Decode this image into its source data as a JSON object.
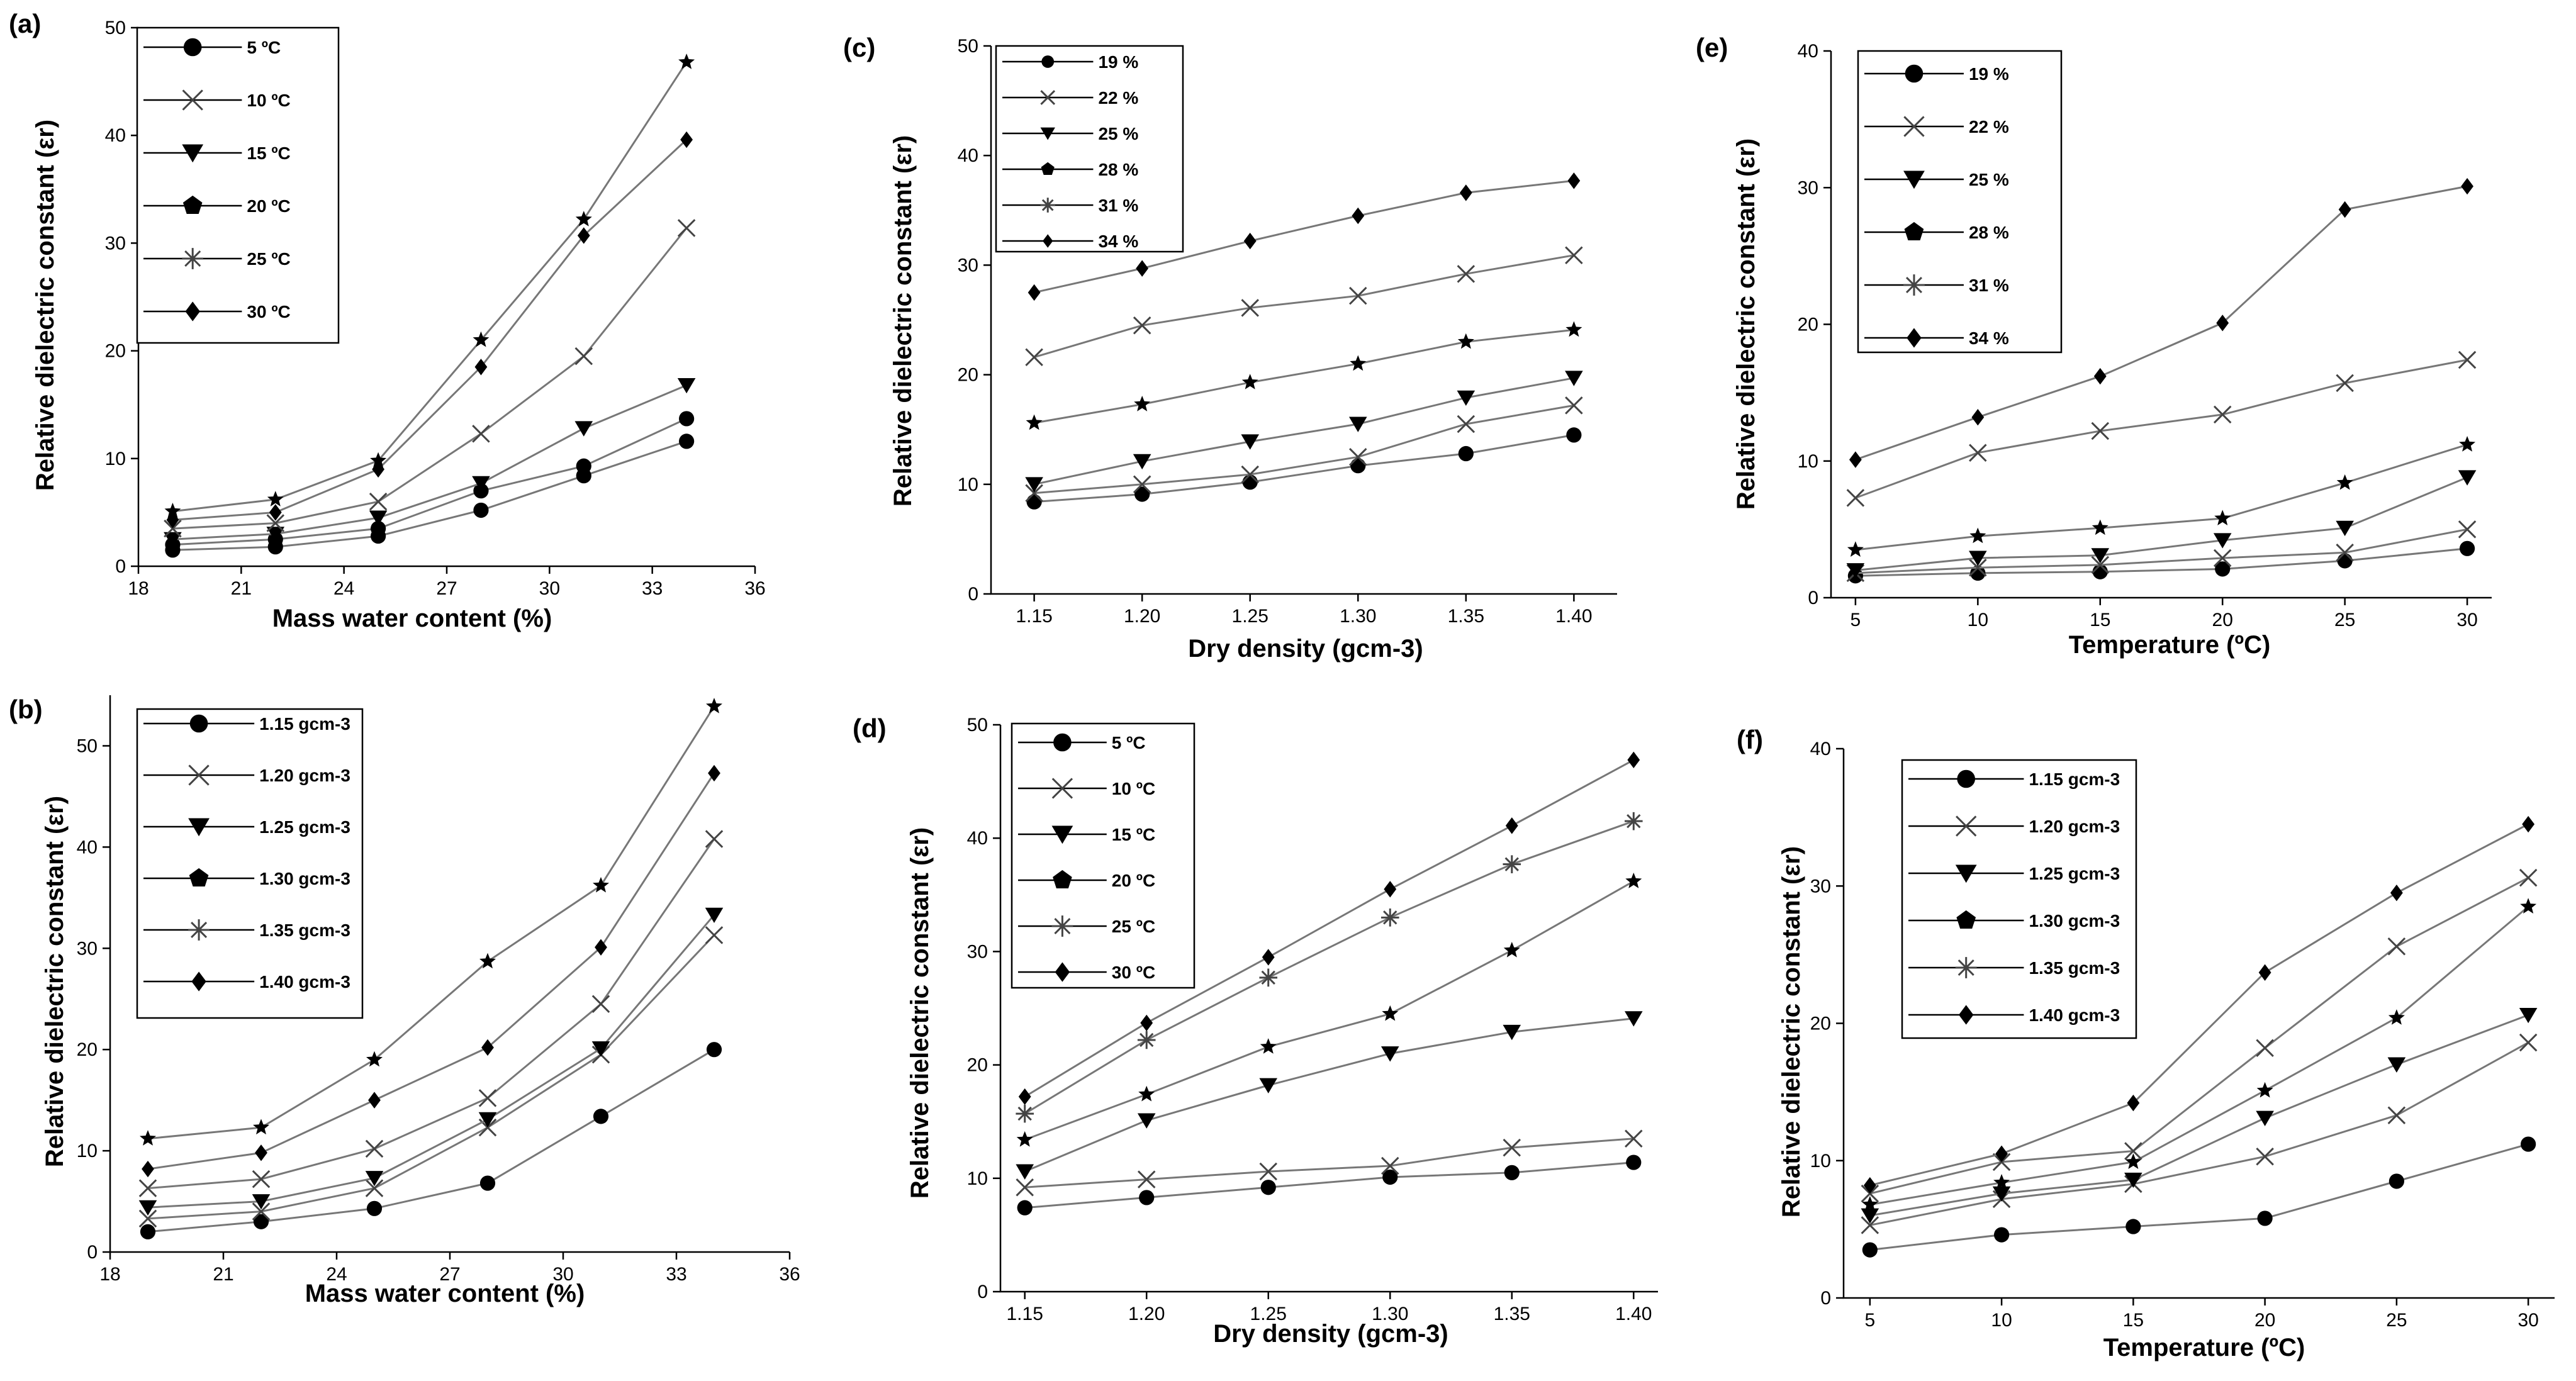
{
  "chart_data": [
    {
      "panel": "(a)",
      "type": "line",
      "xlabel": "Mass water content (%)",
      "ylabel": "Relative dielectric constant (εr)",
      "x": [
        19,
        22,
        25,
        28,
        31,
        34
      ],
      "xticks": [
        18,
        21,
        24,
        27,
        30,
        33,
        36
      ],
      "xlim": [
        18,
        36
      ],
      "yticks": [
        0,
        10,
        20,
        30,
        40,
        50
      ],
      "ylim": [
        0,
        50
      ],
      "series": [
        {
          "name": "5 ºC",
          "marker": "circle",
          "values": [
            1.5,
            1.8,
            2.8,
            5.2,
            8.4,
            11.6
          ]
        },
        {
          "name": "10 ºC",
          "marker": "x",
          "values": [
            2.0,
            2.5,
            3.5,
            7.0,
            9.3,
            13.7
          ]
        },
        {
          "name": "15 ºC",
          "marker": "triangle-down",
          "values": [
            2.5,
            3.0,
            4.5,
            7.7,
            12.8,
            16.8
          ]
        },
        {
          "name": "20 ºC",
          "marker": "pentagon",
          "values": [
            3.5,
            4.0,
            6.0,
            12.3,
            19.5,
            31.4
          ]
        },
        {
          "name": "25 ºC",
          "marker": "asterisk",
          "values": [
            4.3,
            5.0,
            9.0,
            18.5,
            30.7,
            39.6
          ]
        },
        {
          "name": "30 ºC",
          "marker": "diamond",
          "values": [
            5.1,
            6.2,
            9.8,
            21.0,
            32.2,
            46.8
          ]
        }
      ],
      "plotted_markers": [
        "circle",
        "circle",
        "triangle-down",
        "x",
        "diamond",
        "star"
      ]
    },
    {
      "panel": "(b)",
      "type": "line",
      "xlabel": "Mass water content (%)",
      "ylabel": "Relative dielectric constant (εr)",
      "x": [
        19,
        22,
        25,
        28,
        31,
        34
      ],
      "xticks": [
        18,
        21,
        24,
        27,
        30,
        33,
        36
      ],
      "xlim": [
        18,
        36
      ],
      "yticks": [
        0,
        10,
        20,
        30,
        40,
        50
      ],
      "ylim": [
        0,
        55
      ],
      "series": [
        {
          "name": "1.15 gcm-3",
          "marker": "circle",
          "values": [
            2.0,
            3.0,
            4.3,
            6.8,
            13.4,
            20.0
          ]
        },
        {
          "name": "1.20 gcm-3",
          "marker": "x",
          "values": [
            3.3,
            4.0,
            6.3,
            12.3,
            19.5,
            31.3
          ]
        },
        {
          "name": "1.25 gcm-3",
          "marker": "triangle-down",
          "values": [
            4.4,
            5.0,
            7.3,
            13.1,
            20.1,
            33.3
          ]
        },
        {
          "name": "1.30 gcm-3",
          "marker": "pentagon",
          "values": [
            6.3,
            7.2,
            10.2,
            15.2,
            24.5,
            40.8
          ]
        },
        {
          "name": "1.35 gcm-3",
          "marker": "asterisk",
          "values": [
            8.2,
            9.8,
            15.0,
            20.2,
            30.1,
            47.3
          ]
        },
        {
          "name": "1.40 gcm-3",
          "marker": "diamond",
          "values": [
            11.2,
            12.3,
            19.0,
            28.7,
            36.2,
            53.9
          ]
        }
      ],
      "plotted_markers": [
        "circle",
        "x",
        "triangle-down",
        "x",
        "diamond",
        "star"
      ]
    },
    {
      "panel": "(c)",
      "type": "line",
      "xlabel": "Dry density (gcm-3)",
      "ylabel": "Relative dielectric constant (εr)",
      "x": [
        1.15,
        1.2,
        1.25,
        1.3,
        1.35,
        1.4
      ],
      "xticks": [
        1.15,
        1.2,
        1.25,
        1.3,
        1.35,
        1.4
      ],
      "xtick_labels": [
        "1.15",
        "1.20",
        "1.25",
        "1.30",
        "1.35",
        "1.40"
      ],
      "xlim": [
        1.13,
        1.42
      ],
      "yticks": [
        0,
        10,
        20,
        30,
        40,
        50
      ],
      "ylim": [
        0,
        50
      ],
      "series": [
        {
          "name": "19 %",
          "marker": "circle",
          "values": [
            8.4,
            9.1,
            10.2,
            11.7,
            12.8,
            14.5
          ]
        },
        {
          "name": "22 %",
          "marker": "x",
          "values": [
            9.2,
            10.0,
            10.9,
            12.5,
            15.5,
            17.2
          ]
        },
        {
          "name": "25 %",
          "marker": "triangle-down",
          "values": [
            10.0,
            12.1,
            13.9,
            15.5,
            17.9,
            19.7
          ]
        },
        {
          "name": "28 %",
          "marker": "pentagon",
          "values": [
            15.6,
            17.3,
            19.3,
            21.0,
            23.0,
            24.1
          ]
        },
        {
          "name": "31 %",
          "marker": "asterisk",
          "values": [
            21.6,
            24.5,
            26.1,
            27.2,
            29.2,
            30.9
          ]
        },
        {
          "name": "34 %",
          "marker": "diamond",
          "values": [
            27.5,
            29.7,
            32.2,
            34.5,
            36.6,
            37.7
          ]
        }
      ],
      "plotted_markers": [
        "circle",
        "x",
        "triangle-down",
        "star",
        "x",
        "diamond"
      ]
    },
    {
      "panel": "(d)",
      "type": "line",
      "xlabel": "Dry density (gcm-3)",
      "ylabel": "Relative dielectric constant (εr)",
      "x": [
        1.15,
        1.2,
        1.25,
        1.3,
        1.35,
        1.4
      ],
      "xticks": [
        1.15,
        1.2,
        1.25,
        1.3,
        1.35,
        1.4
      ],
      "xtick_labels": [
        "1.15",
        "1.20",
        "1.25",
        "1.30",
        "1.35",
        "1.40"
      ],
      "xlim": [
        1.14,
        1.41
      ],
      "yticks": [
        0,
        10,
        20,
        30,
        40,
        50
      ],
      "ylim": [
        0,
        50
      ],
      "series": [
        {
          "name": "5 ºC",
          "marker": "circle",
          "values": [
            7.4,
            8.3,
            9.2,
            10.1,
            10.5,
            11.4
          ]
        },
        {
          "name": "10 ºC",
          "marker": "x",
          "values": [
            9.2,
            9.9,
            10.6,
            11.1,
            12.7,
            13.5
          ]
        },
        {
          "name": "15 ºC",
          "marker": "triangle-down",
          "values": [
            10.6,
            15.1,
            18.2,
            21.0,
            22.9,
            24.1
          ]
        },
        {
          "name": "20 ºC",
          "marker": "pentagon",
          "values": [
            13.4,
            17.4,
            21.6,
            24.5,
            30.1,
            36.2
          ]
        },
        {
          "name": "25 ºC",
          "marker": "asterisk",
          "values": [
            15.7,
            22.2,
            27.7,
            33.0,
            37.7,
            41.5
          ]
        },
        {
          "name": "30 ºC",
          "marker": "diamond",
          "values": [
            17.2,
            23.7,
            29.5,
            35.5,
            41.1,
            46.9
          ]
        }
      ],
      "plotted_markers": [
        "circle",
        "x",
        "triangle-down",
        "star",
        "asterisk",
        "diamond"
      ]
    },
    {
      "panel": "(e)",
      "type": "line",
      "xlabel": "Temperature (ºC)",
      "ylabel": "Relative dielectric constant (εr)",
      "x": [
        5,
        10,
        15,
        20,
        25,
        30
      ],
      "xticks": [
        5,
        10,
        15,
        20,
        25,
        30
      ],
      "xlim": [
        4,
        31
      ],
      "yticks": [
        0,
        10,
        20,
        30,
        40
      ],
      "ylim": [
        0,
        40
      ],
      "series": [
        {
          "name": "19 %",
          "marker": "circle",
          "values": [
            1.6,
            1.8,
            1.9,
            2.1,
            2.7,
            3.6
          ]
        },
        {
          "name": "22 %",
          "marker": "x",
          "values": [
            1.8,
            2.2,
            2.4,
            2.9,
            3.3,
            5.0
          ]
        },
        {
          "name": "25 %",
          "marker": "triangle-down",
          "values": [
            2.0,
            2.9,
            3.1,
            4.2,
            5.1,
            8.8
          ]
        },
        {
          "name": "28 %",
          "marker": "pentagon",
          "values": [
            3.5,
            4.5,
            5.1,
            5.8,
            8.4,
            11.2
          ]
        },
        {
          "name": "31 %",
          "marker": "asterisk",
          "values": [
            7.3,
            10.6,
            12.2,
            13.4,
            15.7,
            17.4
          ]
        },
        {
          "name": "34 %",
          "marker": "diamond",
          "values": [
            10.1,
            13.2,
            16.2,
            20.1,
            28.4,
            30.1
          ]
        }
      ],
      "plotted_markers": [
        "circle",
        "x",
        "triangle-down",
        "star",
        "x",
        "diamond"
      ]
    },
    {
      "panel": "(f)",
      "type": "line",
      "xlabel": "Temperature (ºC)",
      "ylabel": "Relative dielectric constant (εr)",
      "x": [
        5,
        10,
        15,
        20,
        25,
        30
      ],
      "xticks": [
        5,
        10,
        15,
        20,
        25,
        30
      ],
      "xlim": [
        4,
        31
      ],
      "yticks": [
        0,
        10,
        20,
        30,
        40
      ],
      "ylim": [
        0,
        40
      ],
      "series": [
        {
          "name": "1.15 gcm-3",
          "marker": "circle",
          "values": [
            3.5,
            4.6,
            5.2,
            5.8,
            8.5,
            11.2
          ]
        },
        {
          "name": "1.20 gcm-3",
          "marker": "x",
          "values": [
            5.3,
            7.2,
            8.3,
            10.3,
            13.3,
            18.6
          ]
        },
        {
          "name": "1.25 gcm-3",
          "marker": "triangle-down",
          "values": [
            6.0,
            7.6,
            8.6,
            13.1,
            17.0,
            20.6
          ]
        },
        {
          "name": "1.30 gcm-3",
          "marker": "pentagon",
          "values": [
            6.8,
            8.4,
            9.9,
            15.1,
            20.4,
            28.5
          ]
        },
        {
          "name": "1.35 gcm-3",
          "marker": "asterisk",
          "values": [
            7.6,
            9.9,
            10.7,
            18.2,
            25.6,
            30.6
          ]
        },
        {
          "name": "1.40 gcm-3",
          "marker": "diamond",
          "values": [
            8.2,
            10.5,
            14.2,
            23.7,
            29.5,
            34.5
          ]
        }
      ],
      "plotted_markers": [
        "circle",
        "x",
        "triangle-down",
        "star",
        "x",
        "diamond"
      ]
    }
  ]
}
